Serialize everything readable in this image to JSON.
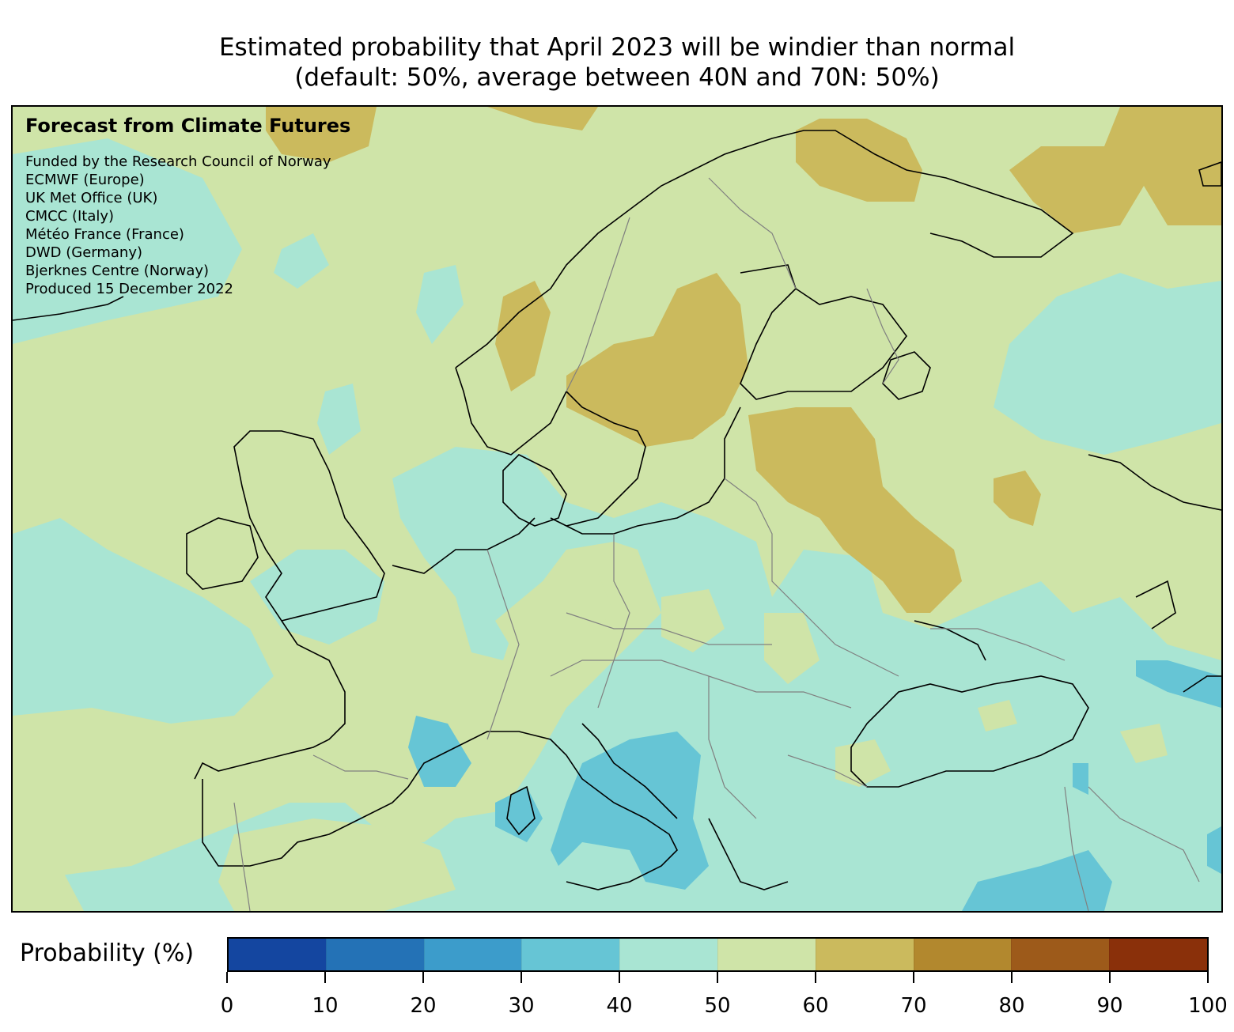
{
  "title": {
    "line1": "Estimated probability that April 2023 will be windier than normal",
    "line2": "(default: 50%, average between 40N and 70N: 50%)"
  },
  "credits": {
    "heading": "Forecast from Climate Futures",
    "lines": [
      "Funded by the Research Council of Norway",
      "ECMWF (Europe)",
      "UK Met Office (UK)",
      "CMCC (Italy)",
      "Météo France (France)",
      "DWD (Germany)",
      "Bjerknes Centre (Norway)",
      "Produced 15 December 2022"
    ]
  },
  "legend": {
    "label": "Probability (%)",
    "ticks": [
      "0",
      "10",
      "20",
      "30",
      "40",
      "50",
      "60",
      "70",
      "80",
      "90",
      "100"
    ],
    "bins": [
      {
        "range": "0-10",
        "color": "#1446a0"
      },
      {
        "range": "10-20",
        "color": "#2472b6"
      },
      {
        "range": "20-30",
        "color": "#3c9ccb"
      },
      {
        "range": "30-40",
        "color": "#66c5d5"
      },
      {
        "range": "40-50",
        "color": "#a9e5d3"
      },
      {
        "range": "50-60",
        "color": "#cfe4a8"
      },
      {
        "range": "60-70",
        "color": "#cbba5d"
      },
      {
        "range": "70-80",
        "color": "#b2882e"
      },
      {
        "range": "80-90",
        "color": "#9d5a1a"
      },
      {
        "range": "90-100",
        "color": "#8a300a"
      }
    ]
  },
  "map": {
    "background_color": "#cfe4a8",
    "coastline_color": "#000000",
    "border_color": "#808080"
  }
}
